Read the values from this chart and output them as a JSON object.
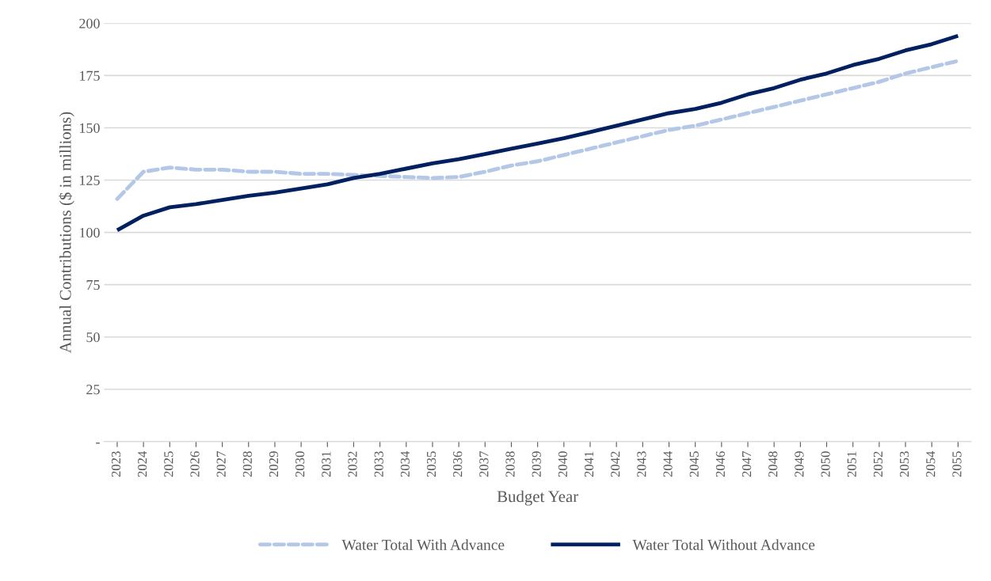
{
  "chart_data": {
    "type": "line",
    "xlabel": "Budget Year",
    "ylabel": "Annual Contributions ($ in millions)",
    "categories": [
      "2023",
      "2024",
      "2025",
      "2026",
      "2027",
      "2028",
      "2029",
      "2030",
      "2031",
      "2032",
      "2033",
      "2034",
      "2035",
      "2036",
      "2037",
      "2038",
      "2039",
      "2040",
      "2041",
      "2042",
      "2043",
      "2044",
      "2045",
      "2046",
      "2047",
      "2048",
      "2049",
      "2050",
      "2051",
      "2052",
      "2053",
      "2054",
      "2055"
    ],
    "series": [
      {
        "name": "Water Total With Advance",
        "color": "#b4c7e7",
        "line_style": "dashed",
        "values": [
          116,
          129,
          131,
          130,
          130,
          129,
          129,
          128,
          128,
          127.5,
          127,
          126.5,
          126,
          126.5,
          129,
          132,
          134,
          137,
          140,
          143,
          146,
          149,
          151,
          154,
          157,
          160,
          163,
          166,
          169,
          172,
          176,
          179,
          182
        ]
      },
      {
        "name": "Water Total Without Advance",
        "color": "#002060",
        "line_style": "solid",
        "values": [
          101,
          108,
          112,
          113.5,
          115.5,
          117.5,
          119,
          121,
          123,
          126,
          128,
          130.5,
          133,
          135,
          137.5,
          140,
          142.5,
          145,
          148,
          151,
          154,
          157,
          159,
          162,
          166,
          169,
          173,
          176,
          180,
          183,
          187,
          190,
          194
        ]
      }
    ],
    "ylim": [
      0,
      200
    ],
    "yticks": [
      {
        "value": 0,
        "label": "-"
      },
      25,
      50,
      75,
      100,
      125,
      150,
      175,
      200
    ],
    "grid": "y",
    "legend": "bottom",
    "marker": "none"
  }
}
